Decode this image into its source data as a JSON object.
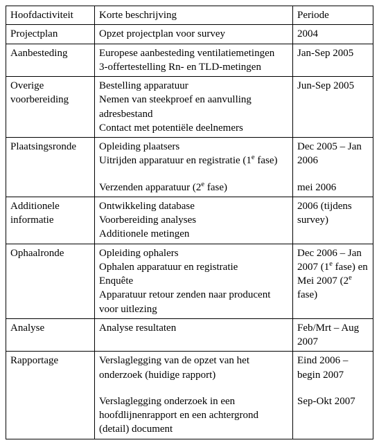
{
  "table": {
    "columns": [
      "Hoofdactiviteit",
      "Korte beschrijving",
      "Periode"
    ],
    "rows": [
      {
        "activity": "Projectplan",
        "desc": [
          [
            "Opzet projectplan voor survey"
          ]
        ],
        "period": [
          [
            "2004"
          ]
        ]
      },
      {
        "activity": "Aanbesteding",
        "desc": [
          [
            "Europese aanbesteding ventilatiemetingen",
            "3-offertestelling Rn- en TLD-metingen"
          ]
        ],
        "period": [
          [
            "Jan-Sep 2005"
          ]
        ]
      },
      {
        "activity": "Overige voorbereiding",
        "desc": [
          [
            "Bestelling apparatuur",
            "Nemen van steekproef en aanvulling adresbestand",
            "Contact met potentiële deelnemers"
          ]
        ],
        "period": [
          [
            "Jun-Sep 2005"
          ]
        ]
      },
      {
        "activity": "Plaatsingsronde",
        "desc": [
          [
            "Opleiding plaatsers",
            "Uitrijden apparatuur en registratie (1__SUP_E__ fase)"
          ],
          [
            "Verzenden apparatuur (2__SUP_E__ fase)"
          ]
        ],
        "period": [
          [
            "Dec 2005 – Jan 2006"
          ],
          [
            "mei 2006"
          ]
        ]
      },
      {
        "activity": "Additionele informatie",
        "desc": [
          [
            "Ontwikkeling database",
            "Voorbereiding analyses",
            "Additionele metingen"
          ]
        ],
        "period": [
          [
            "2006 (tijdens survey)"
          ]
        ]
      },
      {
        "activity": "Ophaalronde",
        "desc": [
          [
            "Opleiding ophalers",
            "Ophalen apparatuur en registratie",
            "Enquête",
            "Apparatuur retour zenden naar producent voor uitlezing"
          ]
        ],
        "period": [
          [
            "Dec 2006 – Jan 2007 (1__SUP_E__ fase) en Mei 2007 (2__SUP_E__ fase)"
          ]
        ]
      },
      {
        "activity": "Analyse",
        "desc": [
          [
            "Analyse resultaten"
          ]
        ],
        "period": [
          [
            "Feb/Mrt – Aug 2007"
          ]
        ]
      },
      {
        "activity": "Rapportage",
        "desc": [
          [
            "Verslaglegging van de opzet van het onderzoek (huidige rapport)"
          ],
          [
            "Verslaglegging onderzoek in een hoofdlijnenrapport en een achtergrond (detail) document"
          ]
        ],
        "period": [
          [
            "Eind 2006 – begin 2007"
          ],
          [
            "Sep-Okt 2007"
          ]
        ]
      }
    ]
  }
}
